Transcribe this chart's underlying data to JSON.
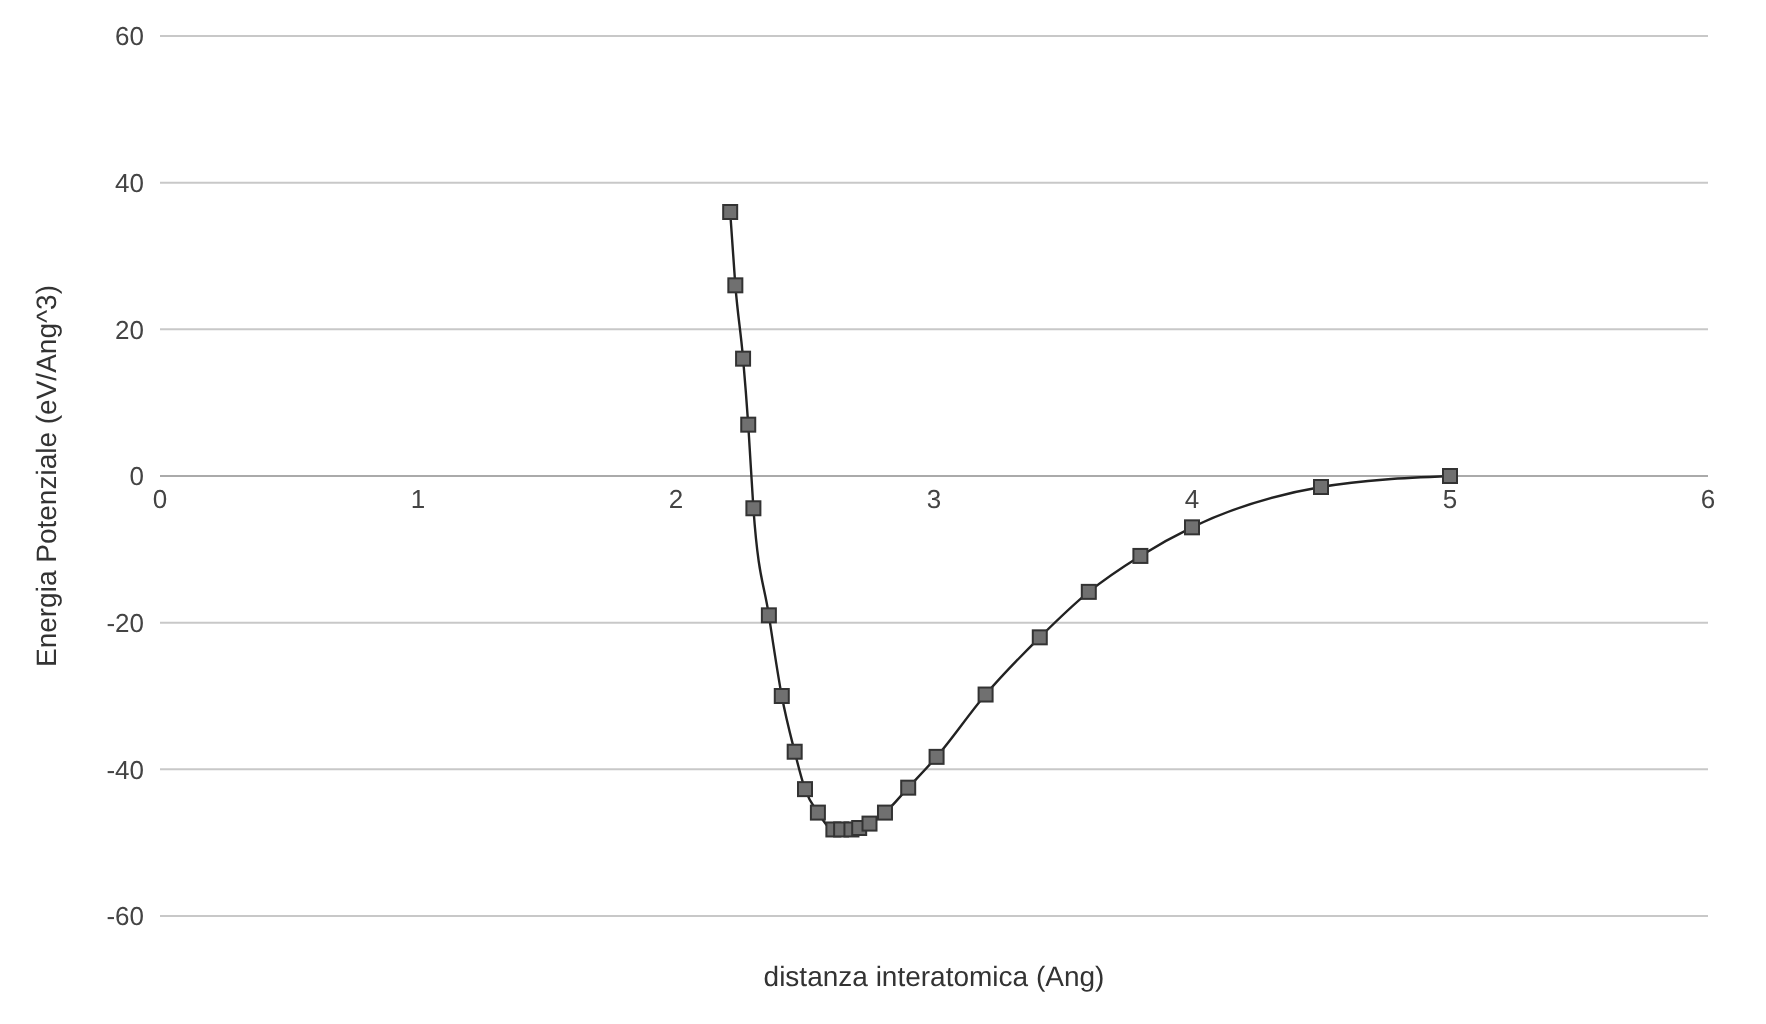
{
  "chart_data": {
    "type": "line",
    "xlabel": "distanza interatomica (Ang)",
    "ylabel": "Energia Potenziale (eV/Ang^3)",
    "x": [
      2.21,
      2.23,
      2.26,
      2.28,
      2.3,
      2.36,
      2.41,
      2.46,
      2.5,
      2.55,
      2.61,
      2.64,
      2.68,
      2.71,
      2.75,
      2.81,
      2.9,
      3.01,
      3.2,
      3.41,
      3.6,
      3.8,
      4.0,
      4.5,
      5.0
    ],
    "series": [
      {
        "color": "#707070",
        "values": [
          36,
          26,
          16,
          7,
          -4.4,
          -19,
          -30,
          -37.6,
          -42.7,
          -45.9,
          -48.2,
          -48.2,
          -48.2,
          -48,
          -47.4,
          -45.9,
          -42.5,
          -38.3,
          -29.8,
          -22,
          -15.8,
          -10.9,
          -7,
          -1.5,
          0
        ]
      }
    ],
    "xlim": [
      0,
      6
    ],
    "xticks": [
      0,
      1,
      2,
      3,
      4,
      5,
      6
    ],
    "ylim": [
      -60,
      60
    ],
    "yticks": [
      -60,
      -40,
      -20,
      0,
      20,
      40,
      60
    ],
    "grid": "y",
    "marker": "square",
    "line_style": "solid"
  }
}
